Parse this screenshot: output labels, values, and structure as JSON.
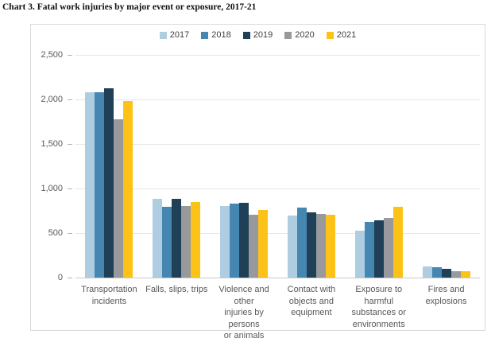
{
  "page_title": "Chart 3. Fatal work injuries by major event or exposure, 2017-21",
  "chart_data": {
    "type": "bar",
    "title": "Chart 3. Fatal work injuries by major event or exposure, 2017-21",
    "categories": [
      "Transportation incidents",
      "Falls, slips, trips",
      "Violence and other injuries by persons or animals",
      "Contact with objects and equipment",
      "Exposure to harmful substances or environments",
      "Fires and explosions"
    ],
    "category_label_lines": [
      [
        "Transportation",
        "incidents"
      ],
      [
        "Falls, slips, trips"
      ],
      [
        "Violence and other",
        "injuries by persons",
        "or animals"
      ],
      [
        "Contact with",
        "objects and",
        "equipment"
      ],
      [
        "Exposure to",
        "harmful",
        "substances or",
        "environments"
      ],
      [
        "Fires and",
        "explosions"
      ]
    ],
    "series": [
      {
        "name": "2017",
        "color": "#aecde1",
        "values": [
          2077,
          887,
          807,
          695,
          531,
          123
        ]
      },
      {
        "name": "2018",
        "color": "#4587b0",
        "values": [
          2080,
          791,
          828,
          786,
          621,
          115
        ]
      },
      {
        "name": "2019",
        "color": "#1f4056",
        "values": [
          2122,
          880,
          841,
          732,
          642,
          99
        ]
      },
      {
        "name": "2020",
        "color": "#98999c",
        "values": [
          1778,
          805,
          705,
          716,
          672,
          73
        ]
      },
      {
        "name": "2021",
        "color": "#fdc217",
        "values": [
          1982,
          850,
          761,
          705,
          798,
          72
        ]
      }
    ],
    "ylim": [
      0,
      2500
    ],
    "ytick_values": [
      0,
      500,
      1000,
      1500,
      2000,
      2500
    ],
    "ytick_labels": [
      "0",
      "500",
      "1,000",
      "1,500",
      "2,000",
      "2,500"
    ],
    "grid": true,
    "legend_position": "top-center",
    "colors": {
      "panel_border": "#d9d9d9",
      "gridline": "#e6e6e6",
      "baseline": "#c9c9c9",
      "axis_text": "#595959",
      "legend_text": "#3f3f3f"
    }
  }
}
